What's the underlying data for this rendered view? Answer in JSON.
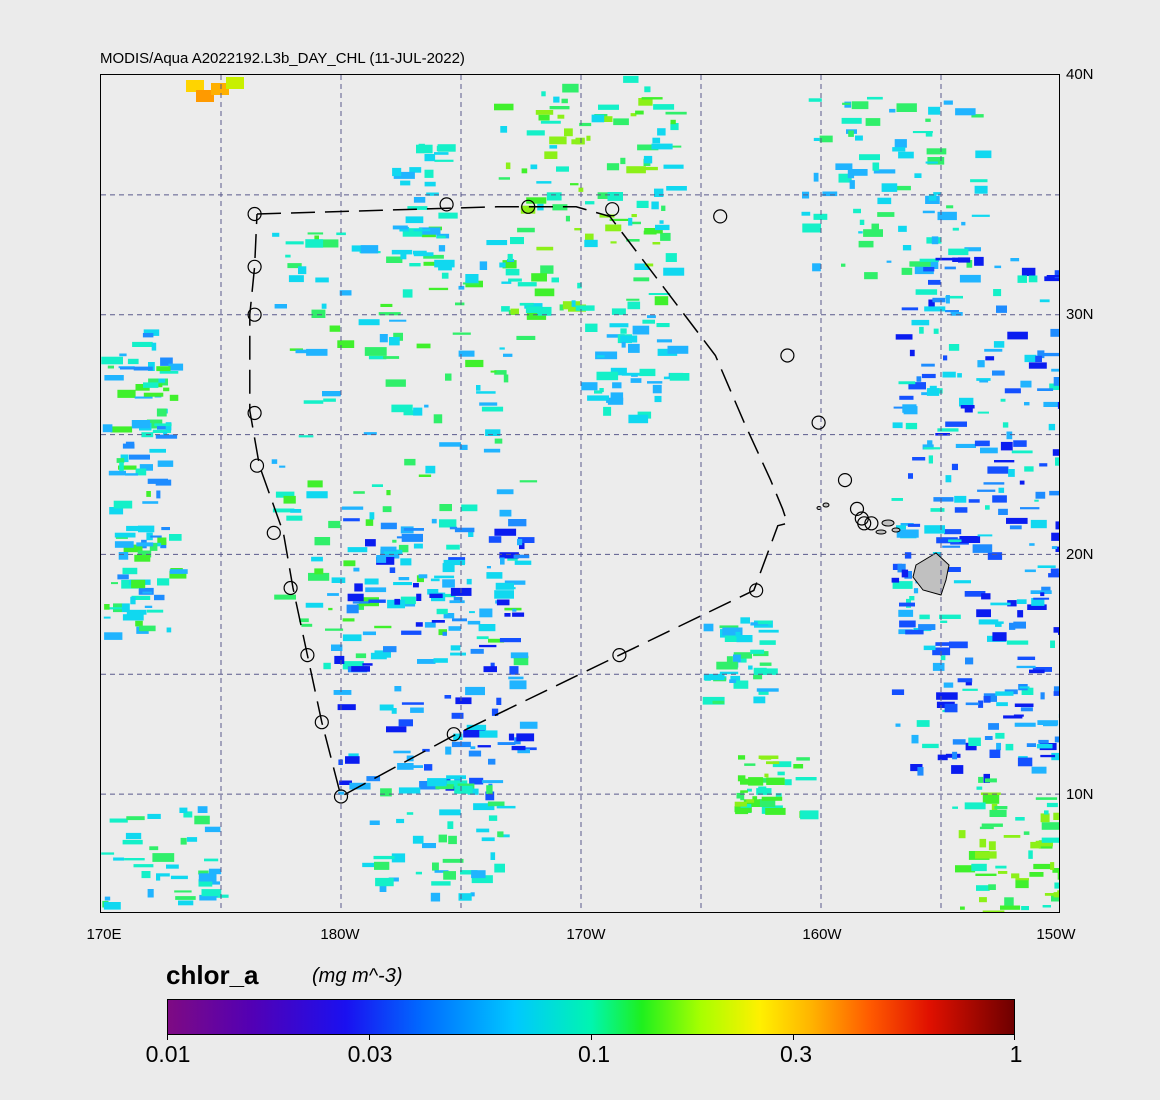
{
  "title": "MODIS/Aqua A2022192.L3b_DAY_CHL (11-JUL-2022)",
  "lat_labels": [
    "40N",
    "30N",
    "20N",
    "10N"
  ],
  "lon_labels": [
    "170E",
    "180W",
    "170W",
    "160W",
    "150W"
  ],
  "colorbar": {
    "variable": "chlor_a",
    "units": "(mg m^-3)",
    "tick_labels": [
      "0.01",
      "0.03",
      "0.1",
      "0.3",
      "1"
    ],
    "scale": "log",
    "range": [
      0.01,
      1
    ]
  },
  "map": {
    "lon_range": [
      170,
      210
    ],
    "lat_range": [
      5,
      40
    ],
    "gridlines": "dashed every 5 degrees",
    "colors": {
      "grid": "#5a5a8c",
      "land": "#c0c0c0",
      "track": "#000000"
    }
  },
  "cruise_track": [
    {
      "lon": 176.5,
      "lat": 34.2
    },
    {
      "lon": 186.5,
      "lat": 34.5
    },
    {
      "lon": 189.8,
      "lat": 34.5
    },
    {
      "lon": 191.2,
      "lat": 34.1
    },
    {
      "lon": 195.6,
      "lat": 28.3
    },
    {
      "lon": 196.8,
      "lat": 25.5
    },
    {
      "lon": 197.9,
      "lat": 23.1
    },
    {
      "lon": 198.4,
      "lat": 21.9
    },
    {
      "lon": 198.6,
      "lat": 21.3
    },
    {
      "lon": 198.2,
      "lat": 21.2
    },
    {
      "lon": 197.2,
      "lat": 18.5
    },
    {
      "lon": 191.6,
      "lat": 15.8
    },
    {
      "lon": 184.8,
      "lat": 12.5
    },
    {
      "lon": 180.0,
      "lat": 9.9
    },
    {
      "lon": 179.2,
      "lat": 13.0
    },
    {
      "lon": 178.0,
      "lat": 18.6
    },
    {
      "lon": 177.6,
      "lat": 20.9
    },
    {
      "lon": 176.6,
      "lat": 23.7
    },
    {
      "lon": 176.2,
      "lat": 26.0
    },
    {
      "lon": 176.2,
      "lat": 30.0
    },
    {
      "lon": 176.4,
      "lat": 32.0
    },
    {
      "lon": 176.5,
      "lat": 34.2
    }
  ],
  "stations": [
    {
      "lon": 176.4,
      "lat": 34.2
    },
    {
      "lon": 184.4,
      "lat": 34.6
    },
    {
      "lon": 187.8,
      "lat": 34.5
    },
    {
      "lon": 191.3,
      "lat": 34.4
    },
    {
      "lon": 195.8,
      "lat": 34.1
    },
    {
      "lon": 198.6,
      "lat": 28.3
    },
    {
      "lon": 199.9,
      "lat": 25.5
    },
    {
      "lon": 201.0,
      "lat": 23.1
    },
    {
      "lon": 201.5,
      "lat": 21.9
    },
    {
      "lon": 201.7,
      "lat": 21.5
    },
    {
      "lon": 201.8,
      "lat": 21.3
    },
    {
      "lon": 202.1,
      "lat": 21.3
    },
    {
      "lon": 197.3,
      "lat": 18.5
    },
    {
      "lon": 191.6,
      "lat": 15.8
    },
    {
      "lon": 184.7,
      "lat": 12.5
    },
    {
      "lon": 180.0,
      "lat": 9.9
    },
    {
      "lon": 179.2,
      "lat": 13.0
    },
    {
      "lon": 178.6,
      "lat": 15.8
    },
    {
      "lon": 177.9,
      "lat": 18.6
    },
    {
      "lon": 177.2,
      "lat": 20.9
    },
    {
      "lon": 176.5,
      "lat": 23.7
    },
    {
      "lon": 176.4,
      "lat": 25.9
    },
    {
      "lon": 176.4,
      "lat": 30.0
    },
    {
      "lon": 176.4,
      "lat": 32.0
    }
  ]
}
